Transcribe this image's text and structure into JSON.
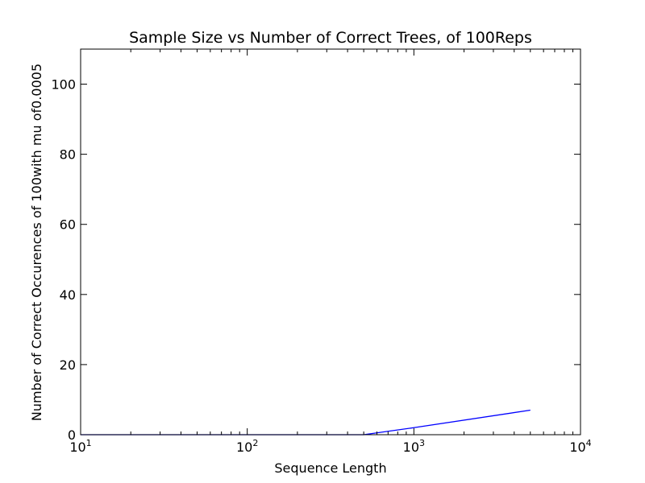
{
  "chart_data": {
    "type": "line",
    "title": "Sample Size vs Number of Correct Trees, of 100Reps",
    "xlabel": "Sequence Length",
    "ylabel": "Number of Correct Occurences of 100with mu of0.0005",
    "x_scale": "log",
    "xlim": [
      10,
      10000
    ],
    "ylim": [
      0,
      110
    ],
    "x_ticks": [
      {
        "value": 10,
        "base": "10",
        "exp": "1"
      },
      {
        "value": 100,
        "base": "10",
        "exp": "2"
      },
      {
        "value": 1000,
        "base": "10",
        "exp": "3"
      },
      {
        "value": 10000,
        "base": "10",
        "exp": "4"
      }
    ],
    "y_ticks": [
      0,
      20,
      40,
      60,
      80,
      100
    ],
    "y_tick_labels": [
      "0",
      "20",
      "40",
      "60",
      "80",
      "100"
    ],
    "grid": false,
    "series": [
      {
        "color": "#0000ff",
        "x": [
          10,
          50,
          100,
          500,
          1000,
          5000
        ],
        "y": [
          0,
          0,
          0,
          0,
          2,
          7
        ]
      }
    ]
  }
}
